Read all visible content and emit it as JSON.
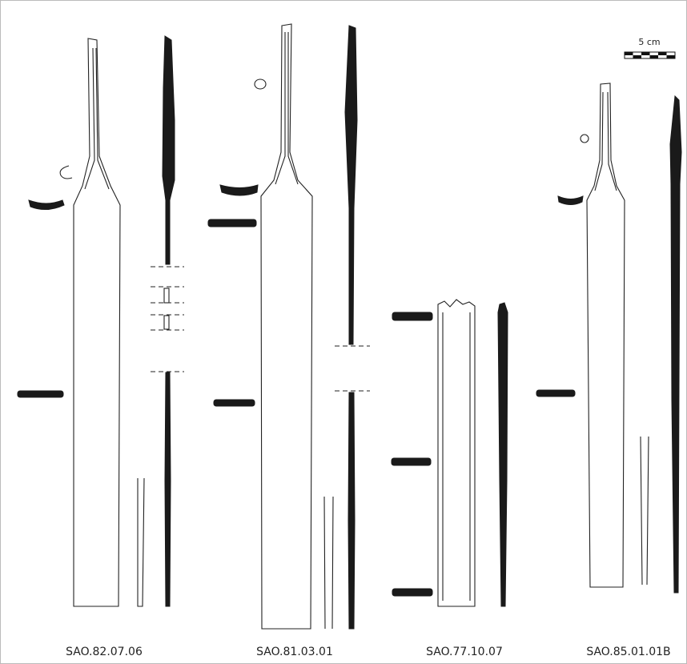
{
  "scale_bar": {
    "label": "5 cm"
  },
  "objects": [
    {
      "label": "SAO.82.07.06"
    },
    {
      "label": "SAO.81.03.01"
    },
    {
      "label": "SAO.77.10.07"
    },
    {
      "label": "SAO.85.01.01B"
    }
  ]
}
